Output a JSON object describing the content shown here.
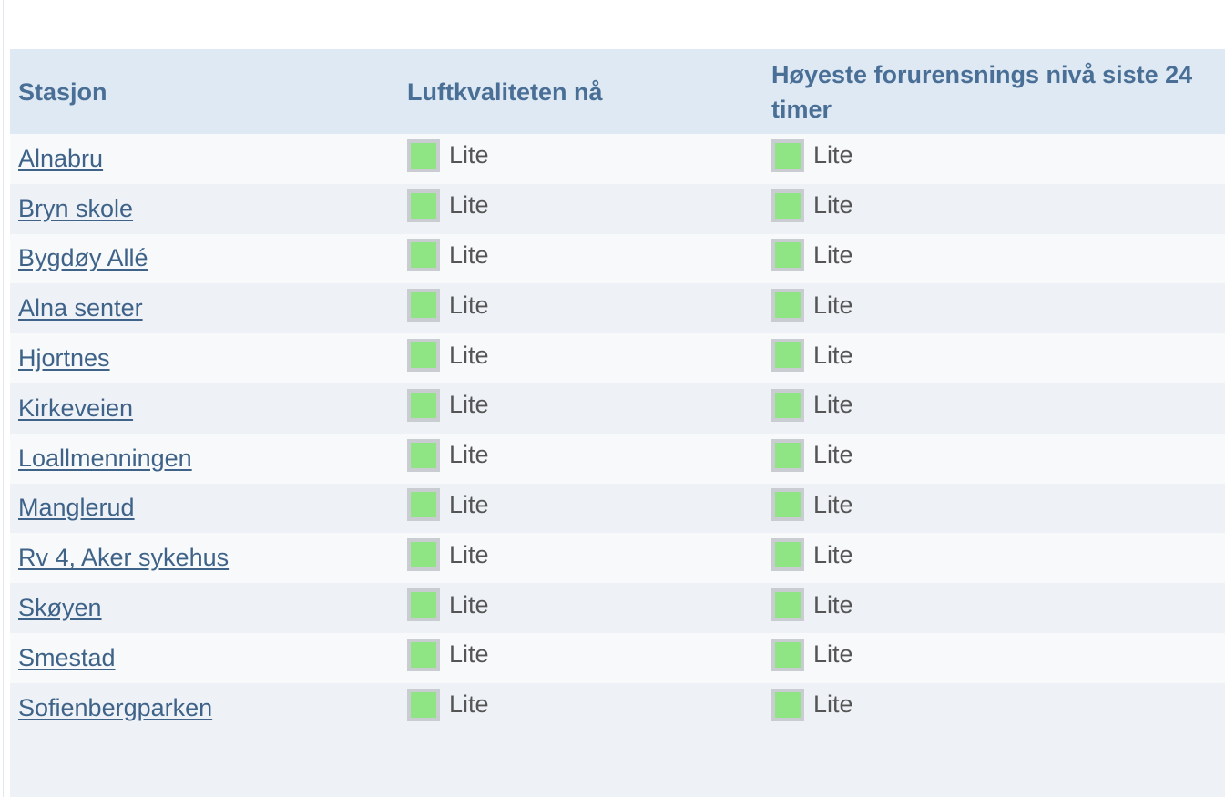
{
  "colors": {
    "header_text": "#4a6f96",
    "link": "#3e6288",
    "status_green": "#8fe583",
    "swatch_border": "#c9cdd1"
  },
  "headers": {
    "station": "Stasjon",
    "current": "Luftkvaliteten nå",
    "max24": "Høyeste forurensnings nivå siste 24 timer"
  },
  "rows": [
    {
      "station": "Alnabru",
      "current": "Lite",
      "max24": "Lite"
    },
    {
      "station": "Bryn skole",
      "current": "Lite",
      "max24": "Lite"
    },
    {
      "station": "Bygdøy Allé",
      "current": "Lite",
      "max24": "Lite"
    },
    {
      "station": "Alna senter",
      "current": "Lite",
      "max24": "Lite"
    },
    {
      "station": "Hjortnes",
      "current": "Lite",
      "max24": "Lite"
    },
    {
      "station": "Kirkeveien",
      "current": "Lite",
      "max24": "Lite"
    },
    {
      "station": "Loallmenningen",
      "current": "Lite",
      "max24": "Lite"
    },
    {
      "station": "Manglerud",
      "current": "Lite",
      "max24": "Lite"
    },
    {
      "station": "Rv 4, Aker sykehus",
      "current": "Lite",
      "max24": "Lite"
    },
    {
      "station": "Skøyen",
      "current": "Lite",
      "max24": "Lite"
    },
    {
      "station": "Smestad",
      "current": "Lite",
      "max24": "Lite"
    },
    {
      "station": "Sofienbergparken",
      "current": "Lite",
      "max24": "Lite"
    }
  ]
}
